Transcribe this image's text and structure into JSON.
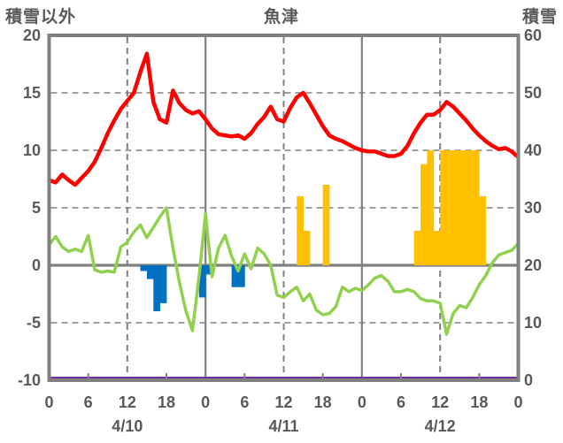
{
  "header": {
    "left_axis_label": "積雪以外",
    "title": "魚津",
    "right_axis_label": "積雪"
  },
  "colors": {
    "frame_gray": "#808080",
    "text_gray": "#595959",
    "red_line": "#FF0000",
    "green_line": "#92D050",
    "blue_bars": "#0070C0",
    "yellow_bars": "#FFC000",
    "purple_line": "#7030A0",
    "background": "#FFFFFF"
  },
  "chart_data": {
    "type": "line",
    "title": "魚津",
    "days": [
      "4/10",
      "4/11",
      "4/12"
    ],
    "hours_per_day": 24,
    "hour_tick_step": 6,
    "hour_tick_labels": [
      "0",
      "6",
      "12",
      "18",
      "0",
      "6",
      "12",
      "18",
      "0",
      "6",
      "12",
      "18",
      "0"
    ],
    "left_axis": {
      "label": "積雪以外",
      "min": -10,
      "max": 20,
      "ticks": [
        20,
        15,
        10,
        5,
        0,
        -5,
        -10
      ],
      "dashed_gridlines": [
        15,
        10,
        5,
        -5
      ],
      "zero_line": 0
    },
    "right_axis": {
      "label": "積雪",
      "min": 0,
      "max": 60,
      "ticks": [
        60,
        50,
        40,
        30,
        20,
        10,
        0
      ]
    },
    "grid": {
      "dashed_vertical_hours": [
        12,
        36,
        60
      ],
      "solid_vertical_hours": [
        24,
        48
      ]
    },
    "series": [
      {
        "name": "red-line",
        "type": "line",
        "axis": "left",
        "color": "#FF0000",
        "start_hour": 0,
        "values": [
          7.4,
          7.2,
          7.9,
          7.4,
          7.0,
          7.6,
          8.2,
          9.0,
          10.2,
          11.5,
          12.6,
          13.6,
          14.3,
          15.0,
          16.8,
          18.4,
          14.2,
          12.7,
          12.4,
          15.2,
          14.1,
          13.5,
          13.2,
          13.4,
          12.7,
          11.9,
          11.4,
          11.3,
          11.2,
          11.3,
          11.0,
          11.5,
          12.3,
          12.9,
          13.8,
          12.7,
          12.5,
          13.7,
          14.6,
          15.0,
          14.1,
          13.1,
          12.1,
          11.3,
          11.0,
          10.8,
          10.5,
          10.2,
          10.0,
          9.9,
          9.9,
          9.7,
          9.5,
          9.5,
          9.7,
          10.4,
          11.5,
          12.4,
          13.1,
          13.1,
          13.5,
          14.2,
          13.8,
          13.2,
          12.6,
          11.9,
          11.3,
          10.8,
          10.4,
          10.1,
          10.2,
          9.9,
          9.4
        ]
      },
      {
        "name": "green-line",
        "type": "line",
        "axis": "left",
        "color": "#92D050",
        "start_hour": 0,
        "values": [
          1.8,
          2.5,
          1.6,
          1.2,
          1.4,
          1.2,
          2.6,
          -0.4,
          -0.6,
          -0.5,
          -0.6,
          1.6,
          2.0,
          2.9,
          3.5,
          2.4,
          3.3,
          4.2,
          5.0,
          1.5,
          -1.5,
          -4.0,
          -5.7,
          -1.0,
          4.5,
          -1.0,
          1.5,
          2.6,
          0.8,
          -0.5,
          1.0,
          -0.3,
          1.5,
          1.0,
          0.0,
          -2.6,
          -2.8,
          -2.3,
          -1.9,
          -3.1,
          -2.5,
          -3.9,
          -4.3,
          -4.2,
          -3.6,
          -1.9,
          -2.3,
          -2.0,
          -2.2,
          -1.7,
          -1.1,
          -0.9,
          -1.4,
          -2.3,
          -2.3,
          -2.1,
          -2.3,
          -2.9,
          -3.1,
          -3.1,
          -3.3,
          -6.0,
          -4.2,
          -3.5,
          -3.7,
          -2.8,
          -1.7,
          -0.9,
          0.2,
          0.9,
          1.1,
          1.3,
          1.9
        ]
      },
      {
        "name": "blue-bars",
        "type": "bar",
        "axis": "left",
        "color": "#0070C0",
        "bars": [
          {
            "hour": 14,
            "value": -0.5
          },
          {
            "hour": 15,
            "value": -1.2
          },
          {
            "hour": 16,
            "value": -4.0
          },
          {
            "hour": 17,
            "value": -3.3
          },
          {
            "hour": 23,
            "value": -2.8
          },
          {
            "hour": 24,
            "value": -0.8
          },
          {
            "hour": 28,
            "value": -1.9
          },
          {
            "hour": 29,
            "value": -1.9
          }
        ]
      },
      {
        "name": "yellow-bars",
        "type": "bar",
        "axis": "left",
        "color": "#FFC000",
        "bars": [
          {
            "hour": 38,
            "value": 6
          },
          {
            "hour": 39,
            "value": 3
          },
          {
            "hour": 42,
            "value": 7
          },
          {
            "hour": 56,
            "value": 3
          },
          {
            "hour": 57,
            "value": 8.8
          },
          {
            "hour": 58,
            "value": 10
          },
          {
            "hour": 59,
            "value": 3
          },
          {
            "hour": 60,
            "value": 10
          },
          {
            "hour": 61,
            "value": 10
          },
          {
            "hour": 62,
            "value": 10
          },
          {
            "hour": 63,
            "value": 10
          },
          {
            "hour": 64,
            "value": 10
          },
          {
            "hour": 65,
            "value": 10
          },
          {
            "hour": 66,
            "value": 6
          }
        ]
      },
      {
        "name": "purple-line",
        "type": "line",
        "axis": "right",
        "color": "#7030A0",
        "constant_value": 0
      }
    ]
  }
}
